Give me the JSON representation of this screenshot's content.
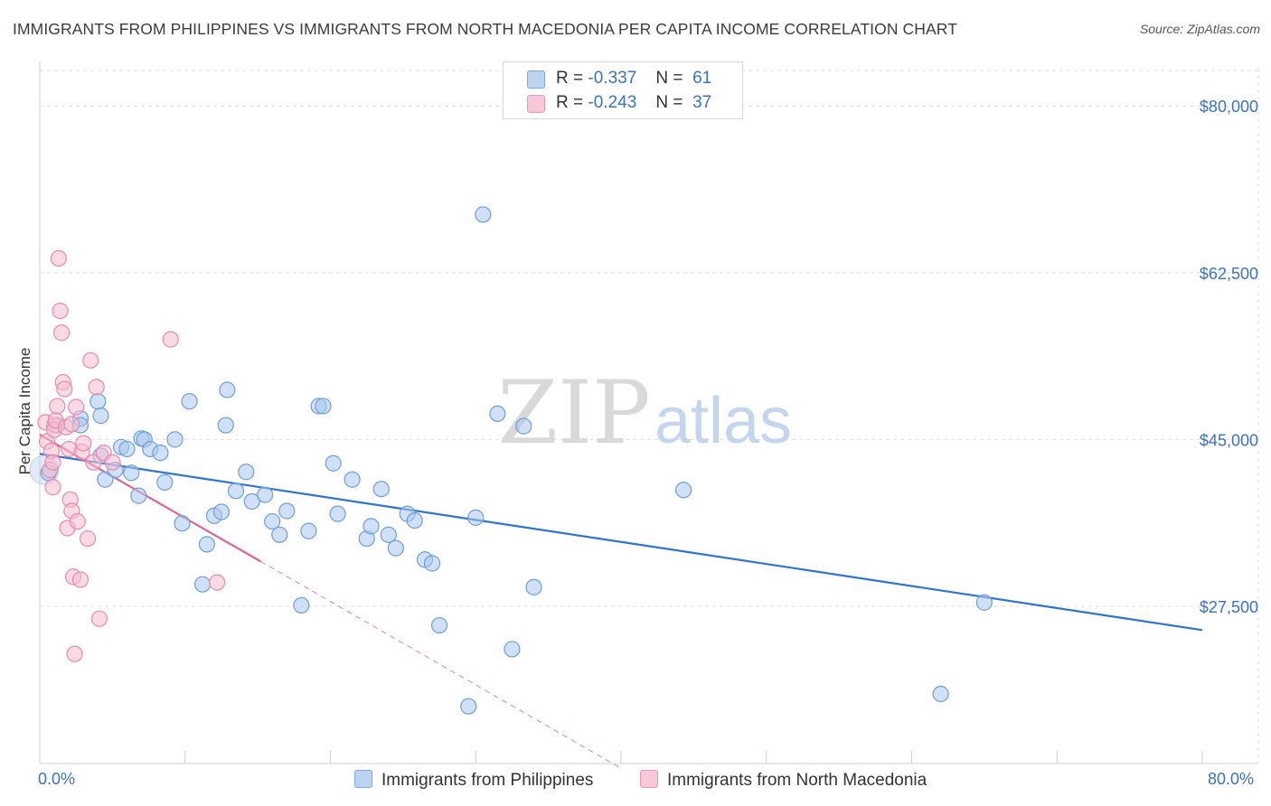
{
  "chart_data": {
    "type": "scatter",
    "title": "IMMIGRANTS FROM PHILIPPINES VS IMMIGRANTS FROM NORTH MACEDONIA PER CAPITA INCOME CORRELATION CHART",
    "source": "Source: ZipAtlas.com",
    "ylabel": "Per Capita Income",
    "xlim": [
      0,
      80
    ],
    "ylim": [
      11000,
      84000
    ],
    "y_ticks": [
      {
        "value": 80000,
        "label": "$80,000"
      },
      {
        "value": 62500,
        "label": "$62,500"
      },
      {
        "value": 45000,
        "label": "$45,000"
      },
      {
        "value": 27500,
        "label": "$27,500"
      }
    ],
    "x_tick_labels": {
      "min": "0.0%",
      "max": "80.0%"
    },
    "legend_stats": [
      {
        "r_label": "R =",
        "r_value": "-0.337",
        "n_label": "N =",
        "n_value": "61"
      },
      {
        "r_label": "R =",
        "r_value": "-0.243",
        "n_label": "N =",
        "n_value": "37"
      }
    ],
    "colors": {
      "philippines_fill": "#a9c6ee",
      "philippines_stroke": "#6f9ed8",
      "philippines_line": "#2f74d0",
      "macedonia_fill": "#f6bdd0",
      "macedonia_stroke": "#e98aab",
      "macedonia_line": "#e0628f"
    },
    "series": [
      {
        "name": "Immigrants from Philippines",
        "points": [
          [
            0.6,
            41.5
          ],
          [
            1.2,
            46.5
          ],
          [
            2.8,
            47.2
          ],
          [
            2.8,
            46.5
          ],
          [
            4.0,
            49.0
          ],
          [
            4.2,
            47.5
          ],
          [
            4.2,
            43.3
          ],
          [
            4.5,
            40.8
          ],
          [
            5.2,
            41.8
          ],
          [
            5.6,
            44.2
          ],
          [
            6.0,
            44.0
          ],
          [
            6.3,
            41.5
          ],
          [
            6.8,
            39.1
          ],
          [
            7.0,
            45.1
          ],
          [
            7.2,
            45.0
          ],
          [
            7.6,
            44.0
          ],
          [
            8.3,
            43.6
          ],
          [
            8.6,
            40.5
          ],
          [
            9.3,
            45.0
          ],
          [
            9.8,
            36.2
          ],
          [
            10.3,
            49.0
          ],
          [
            11.2,
            29.8
          ],
          [
            11.5,
            34.0
          ],
          [
            12.0,
            37.0
          ],
          [
            12.5,
            37.4
          ],
          [
            12.8,
            46.5
          ],
          [
            12.9,
            50.2
          ],
          [
            13.5,
            39.6
          ],
          [
            14.2,
            41.6
          ],
          [
            14.6,
            38.5
          ],
          [
            15.5,
            39.2
          ],
          [
            16.0,
            36.4
          ],
          [
            16.5,
            35.0
          ],
          [
            17.0,
            37.5
          ],
          [
            18.0,
            27.6
          ],
          [
            18.5,
            35.4
          ],
          [
            19.2,
            48.5
          ],
          [
            19.5,
            48.5
          ],
          [
            20.2,
            42.5
          ],
          [
            20.5,
            37.2
          ],
          [
            21.5,
            40.8
          ],
          [
            22.5,
            34.6
          ],
          [
            22.8,
            35.9
          ],
          [
            23.5,
            39.8
          ],
          [
            24.0,
            35.0
          ],
          [
            24.5,
            33.6
          ],
          [
            25.3,
            37.2
          ],
          [
            25.8,
            36.5
          ],
          [
            26.5,
            32.4
          ],
          [
            27.0,
            32.0
          ],
          [
            27.5,
            25.5
          ],
          [
            29.5,
            17.0
          ],
          [
            30.0,
            36.8
          ],
          [
            30.5,
            68.6
          ],
          [
            31.5,
            47.7
          ],
          [
            32.5,
            23.0
          ],
          [
            33.3,
            46.4
          ],
          [
            34.0,
            29.5
          ],
          [
            44.3,
            39.7
          ],
          [
            65.0,
            27.9
          ],
          [
            62.0,
            18.3
          ]
        ]
      },
      {
        "name": "Immigrants from North Macedonia",
        "points": [
          [
            0.4,
            46.8
          ],
          [
            0.5,
            44.8
          ],
          [
            0.7,
            41.8
          ],
          [
            0.8,
            43.8
          ],
          [
            0.9,
            42.6
          ],
          [
            0.9,
            40.0
          ],
          [
            1.0,
            46.5
          ],
          [
            1.0,
            46.0
          ],
          [
            1.1,
            47.0
          ],
          [
            1.2,
            48.5
          ],
          [
            1.3,
            64.0
          ],
          [
            1.4,
            58.5
          ],
          [
            1.5,
            56.2
          ],
          [
            1.6,
            51.0
          ],
          [
            1.7,
            50.3
          ],
          [
            1.8,
            46.3
          ],
          [
            1.9,
            35.7
          ],
          [
            2.0,
            44.0
          ],
          [
            2.1,
            38.7
          ],
          [
            2.2,
            37.5
          ],
          [
            2.3,
            30.6
          ],
          [
            2.4,
            22.5
          ],
          [
            2.5,
            48.4
          ],
          [
            2.6,
            36.4
          ],
          [
            2.8,
            30.3
          ],
          [
            2.9,
            43.7
          ],
          [
            3.0,
            44.6
          ],
          [
            3.3,
            34.6
          ],
          [
            3.5,
            53.3
          ],
          [
            3.7,
            42.6
          ],
          [
            3.9,
            50.5
          ],
          [
            4.1,
            26.2
          ],
          [
            4.4,
            43.6
          ],
          [
            9.0,
            55.5
          ],
          [
            12.2,
            30.0
          ],
          [
            5.0,
            42.6
          ],
          [
            2.2,
            46.6
          ]
        ]
      }
    ],
    "trend_lines": [
      {
        "series": "Immigrants from Philippines",
        "x": [
          0,
          80
        ],
        "y": [
          43.5,
          25.0
        ]
      },
      {
        "series": "Immigrants from North Macedonia",
        "solid_x": [
          0,
          15.2
        ],
        "dashed_x": [
          15.2,
          40
        ],
        "y_at_0": 45.5,
        "y_at_15_2": 32.2,
        "y_at_40": 10.5
      }
    ],
    "watermark": "ZIPatlas"
  }
}
